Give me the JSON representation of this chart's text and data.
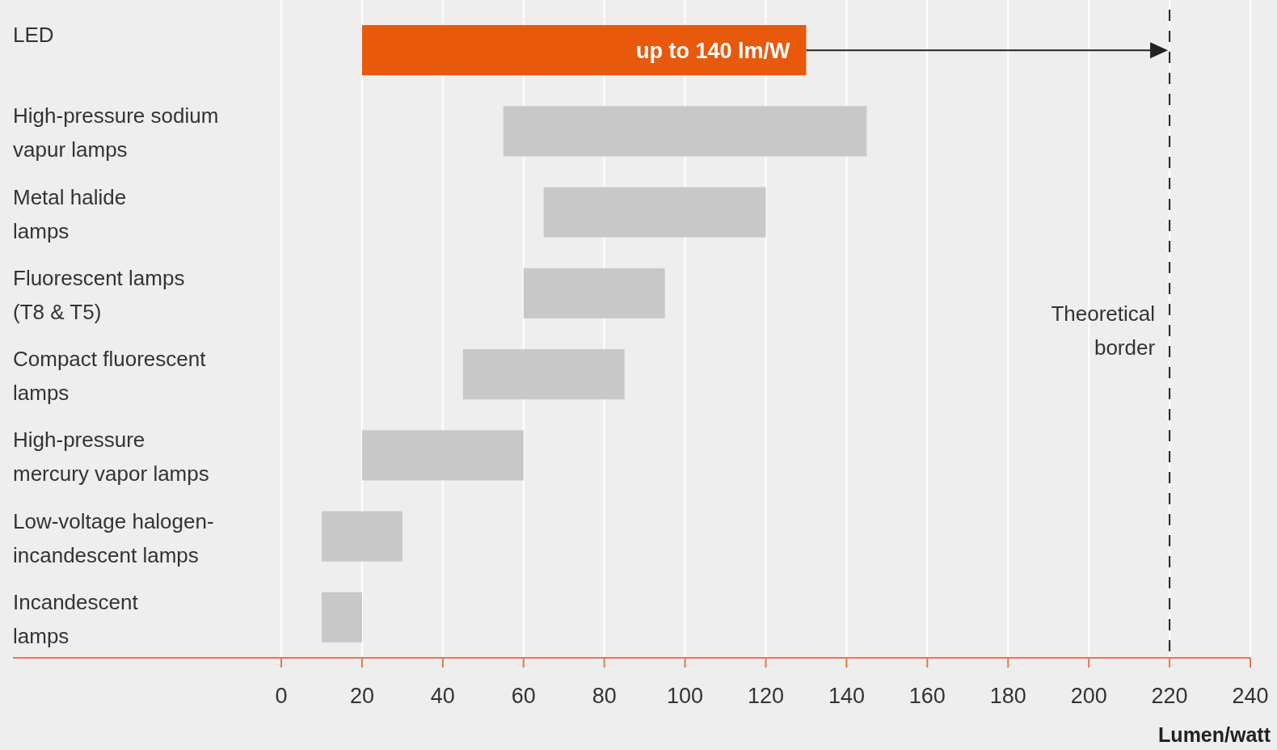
{
  "chart_data": {
    "type": "bar",
    "orientation": "horizontal",
    "xlabel": "Lumen/watt",
    "categories": [
      "LED",
      "High-pressure sodium vapur lamps",
      "Metal halide lamps",
      "Fluorescent lamps (T8 & T5)",
      "Compact fluorescent lamps",
      "High-pressure mercury vapor lamps",
      "Low-voltage halogen-incandescent lamps",
      "Incandescent lamps"
    ],
    "base": [
      20,
      55,
      65,
      60,
      45,
      20,
      10,
      10
    ],
    "values": [
      110,
      90,
      55,
      35,
      40,
      40,
      20,
      10
    ],
    "colors": [
      "#e8590c",
      "#c8c8c8",
      "#c8c8c8",
      "#c8c8c8",
      "#c8c8c8",
      "#c8c8c8",
      "#c8c8c8",
      "#c8c8c8"
    ],
    "xlim": [
      0,
      240
    ],
    "xticks": [
      0,
      20,
      40,
      60,
      80,
      100,
      120,
      140,
      160,
      180,
      200,
      220,
      240
    ],
    "grid": "x",
    "annotations": [
      {
        "text": "up to 140 lm/W",
        "x": 130,
        "y": "LED"
      }
    ],
    "ref_lines": [
      {
        "axis": "x",
        "value": 220,
        "label": "Theoretical border",
        "line_style": "dashed",
        "color": "#222222"
      }
    ]
  }
}
